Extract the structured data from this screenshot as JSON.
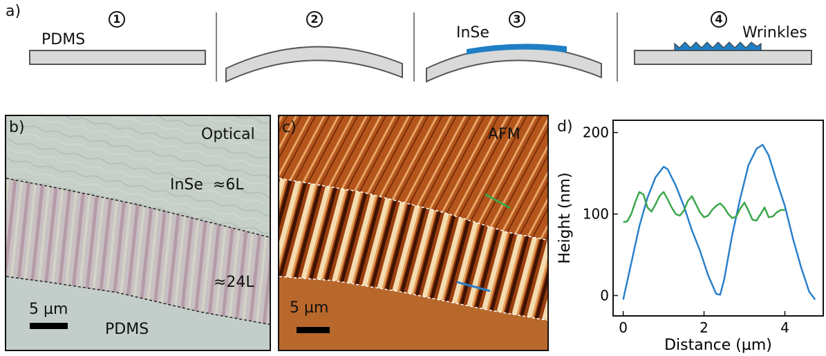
{
  "panel_a": {
    "label": "a)",
    "steps": [
      "1",
      "2",
      "3",
      "4"
    ],
    "pdms_label": "PDMS",
    "inse_label": "InSe",
    "wrinkles_label": "Wrinkles",
    "colors": {
      "substrate": "#d9d9d9",
      "inse": "#1f7fc4"
    }
  },
  "panel_b": {
    "label": "b)",
    "title": "Optical",
    "thin_region": "InSe  ≈6L",
    "thick_region": "≈24L",
    "substrate": "PDMS",
    "scale_bar": "5 µm"
  },
  "panel_c": {
    "label": "c)",
    "title": "AFM",
    "scale_bar": "5 µm"
  },
  "panel_d": {
    "label": "d)"
  },
  "chart_data": {
    "type": "line",
    "xlabel": "Distance (µm)",
    "ylabel": "Height (nm)",
    "xlim": [
      -0.25,
      4.95
    ],
    "ylim": [
      -25,
      215
    ],
    "xticks": [
      0,
      2,
      4
    ],
    "yticks": [
      0,
      100,
      200
    ],
    "series": [
      {
        "color": "#2a7fc9",
        "x": [
          0,
          0.2,
          0.4,
          0.6,
          0.8,
          1.0,
          1.1,
          1.3,
          1.5,
          1.7,
          1.9,
          2.1,
          2.3,
          2.4,
          2.5,
          2.7,
          2.9,
          3.1,
          3.3,
          3.45,
          3.6,
          3.8,
          4.0,
          4.2,
          4.4,
          4.6,
          4.75
        ],
        "y": [
          -5,
          40,
          85,
          120,
          145,
          158,
          155,
          135,
          110,
          80,
          55,
          25,
          2,
          1,
          20,
          75,
          120,
          160,
          180,
          185,
          172,
          140,
          110,
          70,
          35,
          5,
          -5
        ]
      },
      {
        "color": "#3aa74a",
        "x": [
          0,
          0.1,
          0.2,
          0.3,
          0.4,
          0.5,
          0.6,
          0.7,
          0.8,
          0.9,
          1.0,
          1.1,
          1.2,
          1.3,
          1.4,
          1.5,
          1.6,
          1.7,
          1.8,
          1.9,
          2.0,
          2.1,
          2.2,
          2.3,
          2.4,
          2.5,
          2.6,
          2.7,
          2.8,
          2.9,
          3.0,
          3.1,
          3.2,
          3.3,
          3.4,
          3.5,
          3.6,
          3.7,
          3.8,
          3.9,
          4.0
        ],
        "y": [
          90,
          91,
          100,
          115,
          127,
          124,
          108,
          103,
          112,
          122,
          127,
          118,
          108,
          100,
          98,
          104,
          116,
          122,
          112,
          102,
          96,
          98,
          105,
          110,
          113,
          108,
          100,
          95,
          97,
          107,
          114,
          104,
          93,
          92,
          100,
          108,
          96,
          97,
          102,
          105,
          105
        ]
      }
    ]
  }
}
